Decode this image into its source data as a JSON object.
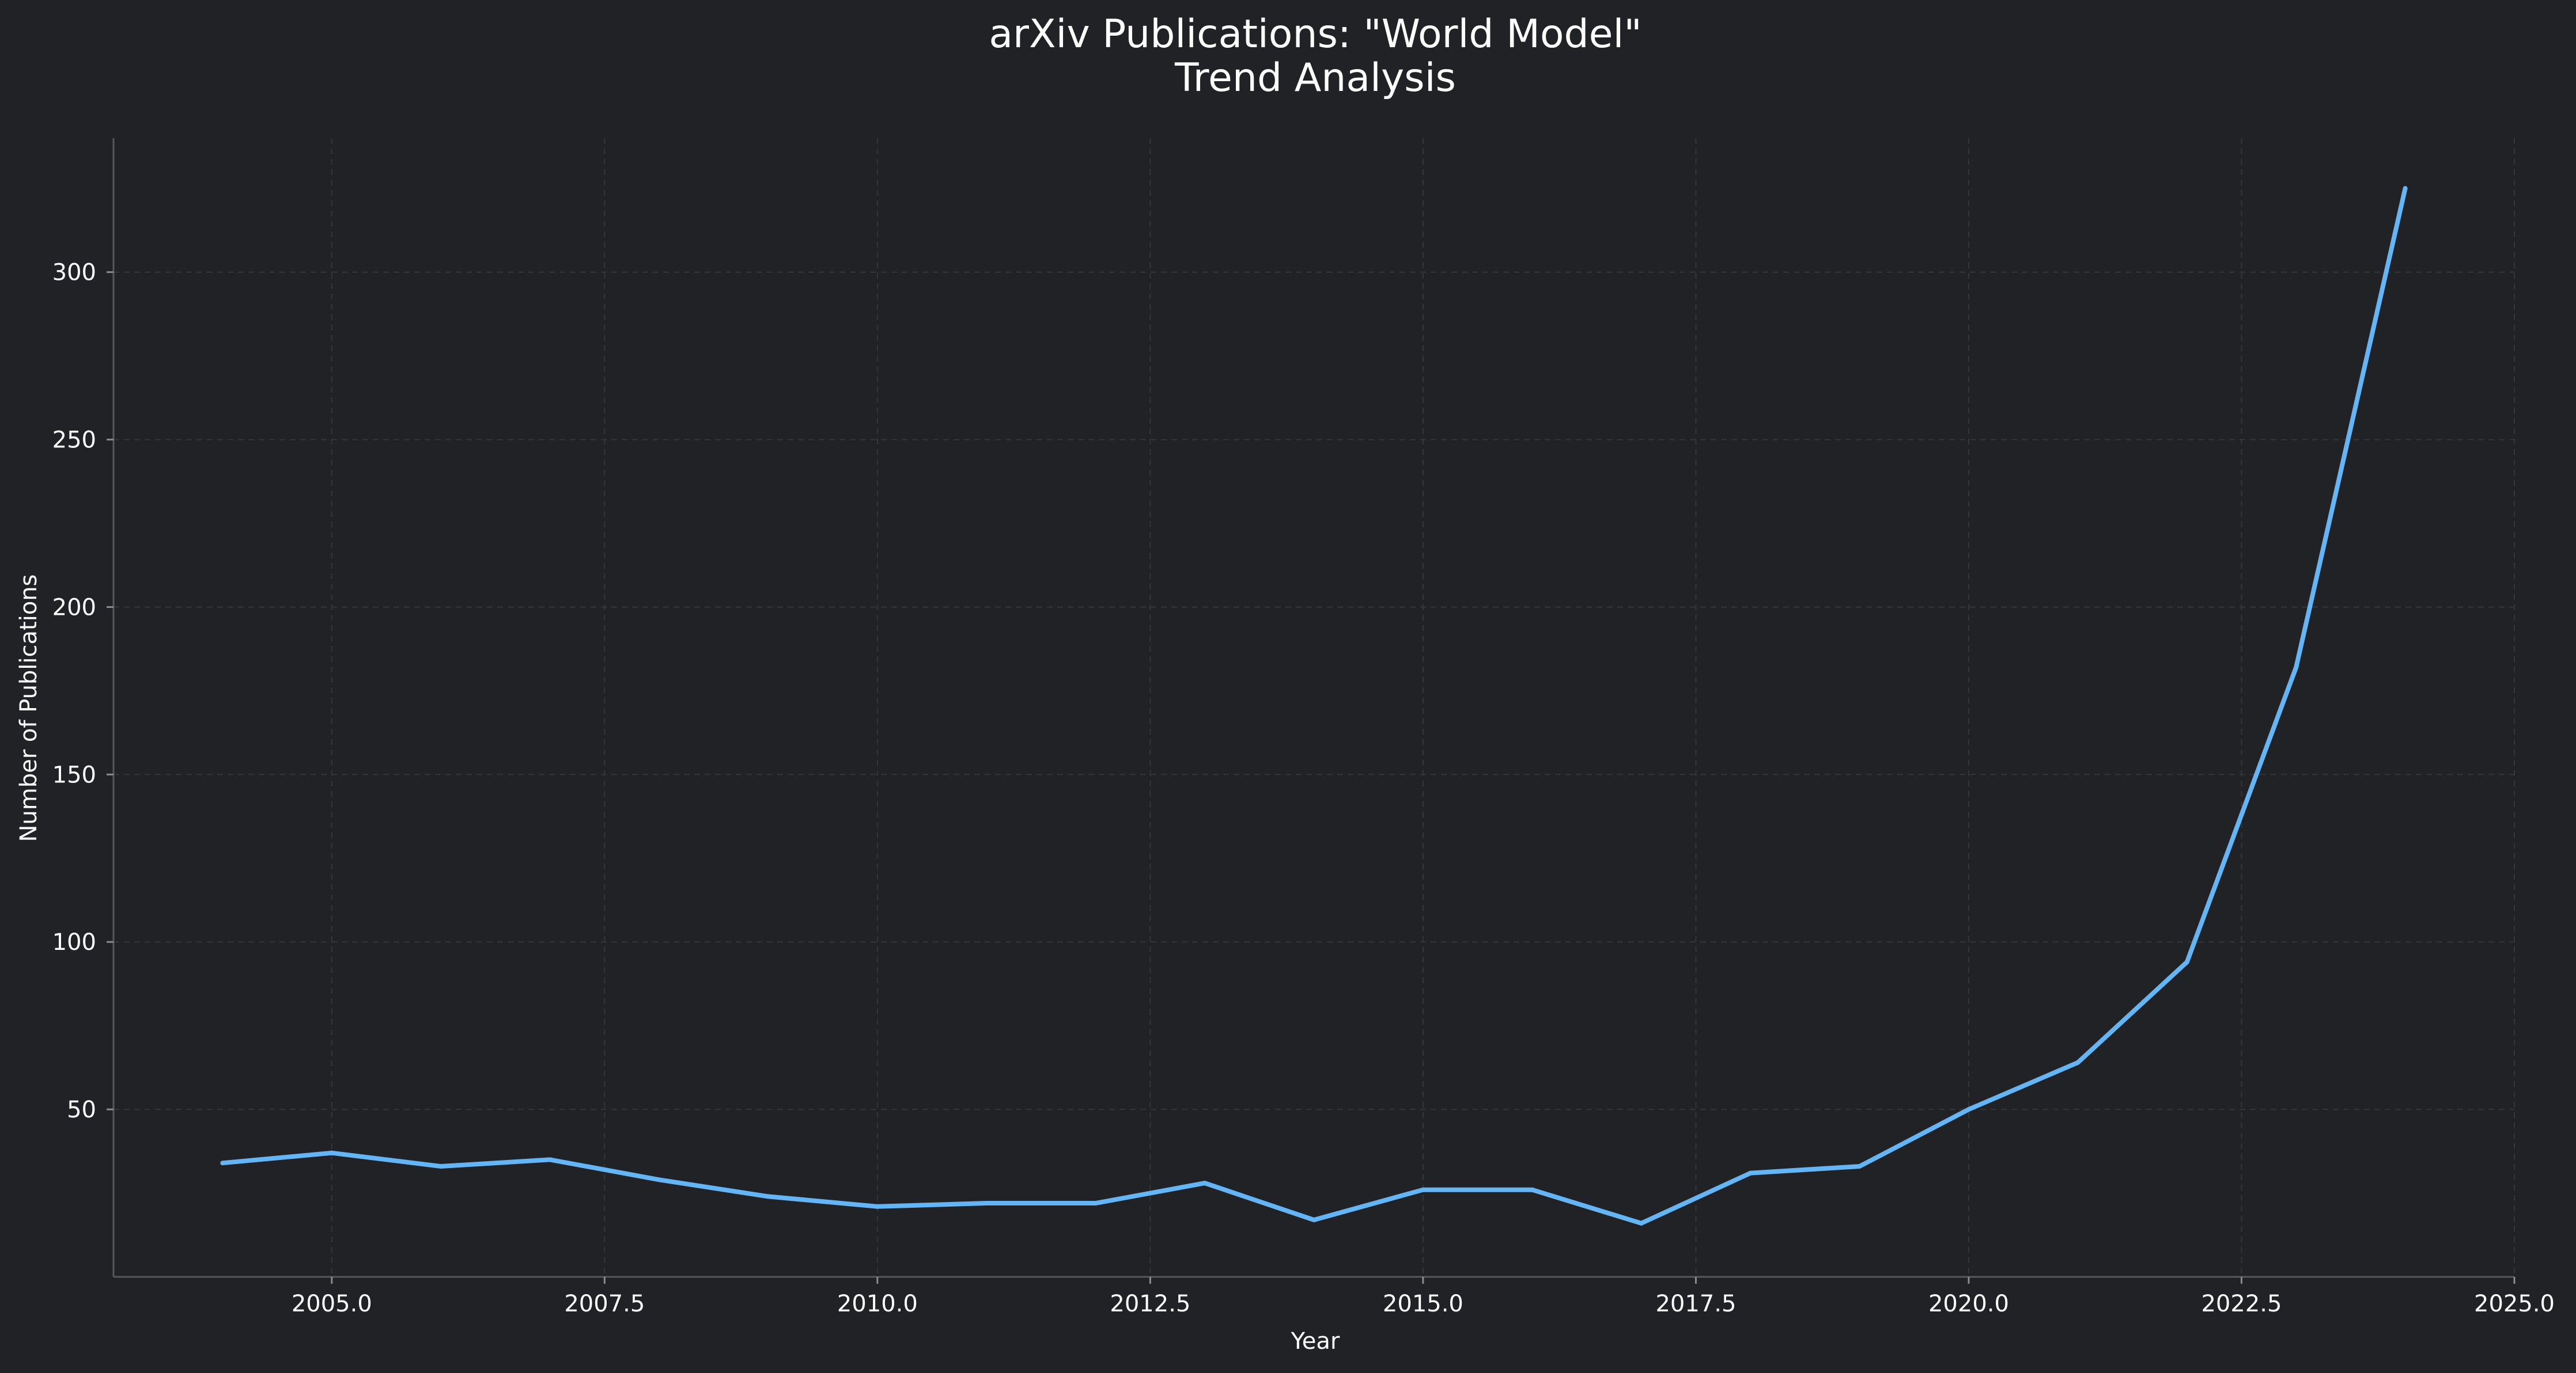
{
  "chart_data": {
    "type": "line",
    "title_line1": "arXiv Publications: \"World Model\"",
    "title_line2": "Trend Analysis",
    "xlabel": "Year",
    "ylabel": "Number of Publications",
    "xlim": [
      2003,
      2025
    ],
    "ylim": [
      0,
      340
    ],
    "x_ticks": [
      2005,
      2007.5,
      2010,
      2012.5,
      2015,
      2017.5,
      2020,
      2022.5,
      2025
    ],
    "x_tick_labels": [
      "2005.0",
      "2007.5",
      "2010.0",
      "2012.5",
      "2015.0",
      "2017.5",
      "2020.0",
      "2022.5",
      "2025.0"
    ],
    "y_ticks": [
      50,
      100,
      150,
      200,
      250,
      300
    ],
    "y_tick_labels": [
      "50",
      "100",
      "150",
      "200",
      "250",
      "300"
    ],
    "grid": true,
    "line_color": "#64b5f6",
    "background_color": "#212226",
    "series": [
      {
        "x": [
          2004,
          2005,
          2006,
          2007,
          2008,
          2009,
          2010,
          2011,
          2012,
          2013,
          2014,
          2015,
          2016,
          2017,
          2018,
          2019,
          2020,
          2021,
          2022,
          2023,
          2024
        ],
        "values": [
          34,
          37,
          33,
          35,
          29,
          24,
          21,
          22,
          22,
          28,
          17,
          26,
          26,
          16,
          31,
          33,
          50,
          64,
          94,
          182,
          325
        ]
      }
    ]
  }
}
